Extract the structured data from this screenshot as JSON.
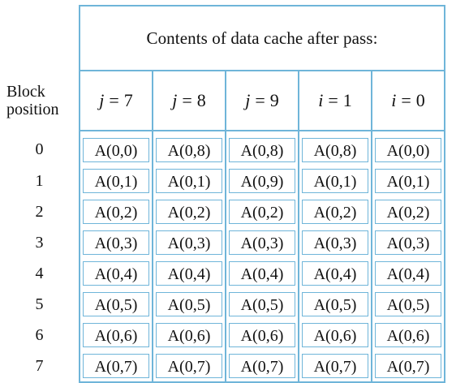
{
  "title": "Contents of data cache after pass:",
  "row_header": [
    "Block",
    "position"
  ],
  "columns": [
    {
      "var": "j",
      "eq": "=",
      "val": "7"
    },
    {
      "var": "j",
      "eq": "=",
      "val": "8"
    },
    {
      "var": "j",
      "eq": "=",
      "val": "9"
    },
    {
      "var": "i",
      "eq": "=",
      "val": "1"
    },
    {
      "var": "i",
      "eq": "=",
      "val": "0"
    }
  ],
  "rows": [
    {
      "pos": "0",
      "cells": [
        "A(0,0)",
        "A(0,8)",
        "A(0,8)",
        "A(0,8)",
        "A(0,0)"
      ]
    },
    {
      "pos": "1",
      "cells": [
        "A(0,1)",
        "A(0,1)",
        "A(0,9)",
        "A(0,1)",
        "A(0,1)"
      ]
    },
    {
      "pos": "2",
      "cells": [
        "A(0,2)",
        "A(0,2)",
        "A(0,2)",
        "A(0,2)",
        "A(0,2)"
      ]
    },
    {
      "pos": "3",
      "cells": [
        "A(0,3)",
        "A(0,3)",
        "A(0,3)",
        "A(0,3)",
        "A(0,3)"
      ]
    },
    {
      "pos": "4",
      "cells": [
        "A(0,4)",
        "A(0,4)",
        "A(0,4)",
        "A(0,4)",
        "A(0,4)"
      ]
    },
    {
      "pos": "5",
      "cells": [
        "A(0,5)",
        "A(0,5)",
        "A(0,5)",
        "A(0,5)",
        "A(0,5)"
      ]
    },
    {
      "pos": "6",
      "cells": [
        "A(0,6)",
        "A(0,6)",
        "A(0,6)",
        "A(0,6)",
        "A(0,6)"
      ]
    },
    {
      "pos": "7",
      "cells": [
        "A(0,7)",
        "A(0,7)",
        "A(0,7)",
        "A(0,7)",
        "A(0,7)"
      ]
    }
  ],
  "colors": {
    "border": "#6fb5d9",
    "text": "#111111",
    "background": "#ffffff"
  }
}
